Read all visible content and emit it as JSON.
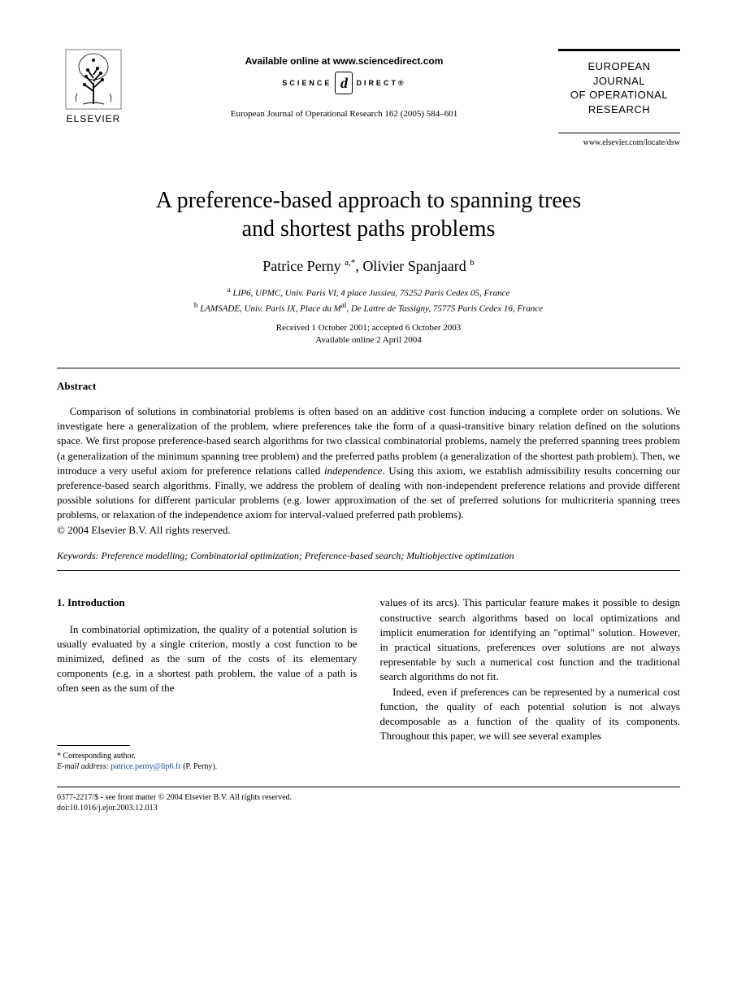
{
  "header": {
    "publisher_name": "ELSEVIER",
    "available_online": "Available online at www.sciencedirect.com",
    "sd_left": "SCIENCE",
    "sd_d": "d",
    "sd_right": "DIRECT®",
    "journal_ref": "European Journal of Operational Research 162 (2005) 584–601",
    "journal_box_line1": "EUROPEAN",
    "journal_box_line2": "JOURNAL",
    "journal_box_line3": "OF OPERATIONAL",
    "journal_box_line4": "RESEARCH",
    "journal_url": "www.elsevier.com/locate/dsw"
  },
  "title_line1": "A preference-based approach to spanning trees",
  "title_line2": "and shortest paths problems",
  "authors_html": "Patrice Perny <sup>a,*</sup>, Olivier Spanjaard <sup>b</sup>",
  "affil_a": "<sup>a</sup> LIP6, UPMC, Univ. Paris VI, 4 place Jussieu, 75252 Paris Cedex 05, France",
  "affil_b": "<sup>b</sup> LAMSADE, Univ. Paris IX, Place du M<sup>al</sup>, De Lattre de Tassigny, 75775 Paris Cedex 16, France",
  "dates_received": "Received 1 October 2001; accepted 6 October 2003",
  "dates_online": "Available online 2 April 2004",
  "abstract_head": "Abstract",
  "abstract_body": "Comparison of solutions in combinatorial problems is often based on an additive cost function inducing a complete order on solutions. We investigate here a generalization of the problem, where preferences take the form of a quasi-transitive binary relation defined on the solutions space. We first propose preference-based search algorithms for two classical combinatorial problems, namely the preferred spanning trees problem (a generalization of the minimum spanning tree problem) and the preferred paths problem (a generalization of the shortest path problem). Then, we introduce a very useful axiom for preference relations called <em>independence</em>. Using this axiom, we establish admissibility results concerning our preference-based search algorithms. Finally, we address the problem of dealing with non-independent preference relations and provide different possible solutions for different particular problems (e.g. lower approximation of the set of preferred solutions for multicriteria spanning trees problems, or relaxation of the independence axiom for interval-valued preferred path problems).",
  "copyright": "© 2004 Elsevier B.V. All rights reserved.",
  "keywords_label": "Keywords:",
  "keywords_text": " Preference modelling; Combinatorial optimization; Preference-based search; Multiobjective optimization",
  "section1_head": "1. Introduction",
  "col1_p1": "In combinatorial optimization, the quality of a potential solution is usually evaluated by a single criterion, mostly a cost function to be minimized, defined as the sum of the costs of its elementary components (e.g. in a shortest path problem, the value of a path is often seen as the sum of the",
  "col2_p1": "values of its arcs). This particular feature makes it possible to design constructive search algorithms based on local optimizations and implicit enumeration for identifying an \"optimal\" solution. However, in practical situations, preferences over solutions are not always representable by such a numerical cost function and the traditional search algorithms do not fit.",
  "col2_p2": "Indeed, even if preferences can be represented by a numerical cost function, the quality of each potential solution is not always decomposable as a function of the quality of its components. Throughout this paper, we will see several examples",
  "footnote_corr": "* Corresponding author.",
  "footnote_email_label": "E-mail address:",
  "footnote_email": "patrice.perny@lip6.fr",
  "footnote_email_who": " (P. Perny).",
  "front_matter_l1": "0377-2217/$ - see front matter © 2004 Elsevier B.V. All rights reserved.",
  "front_matter_l2": "doi:10.1016/j.ejor.2003.12.013",
  "colors": {
    "background": "#ffffff",
    "text": "#000000",
    "link": "#1a4b9b"
  },
  "fonts": {
    "title_size_pt": 22,
    "body_size_pt": 10,
    "abstract_size_pt": 10,
    "footnote_size_pt": 8
  }
}
